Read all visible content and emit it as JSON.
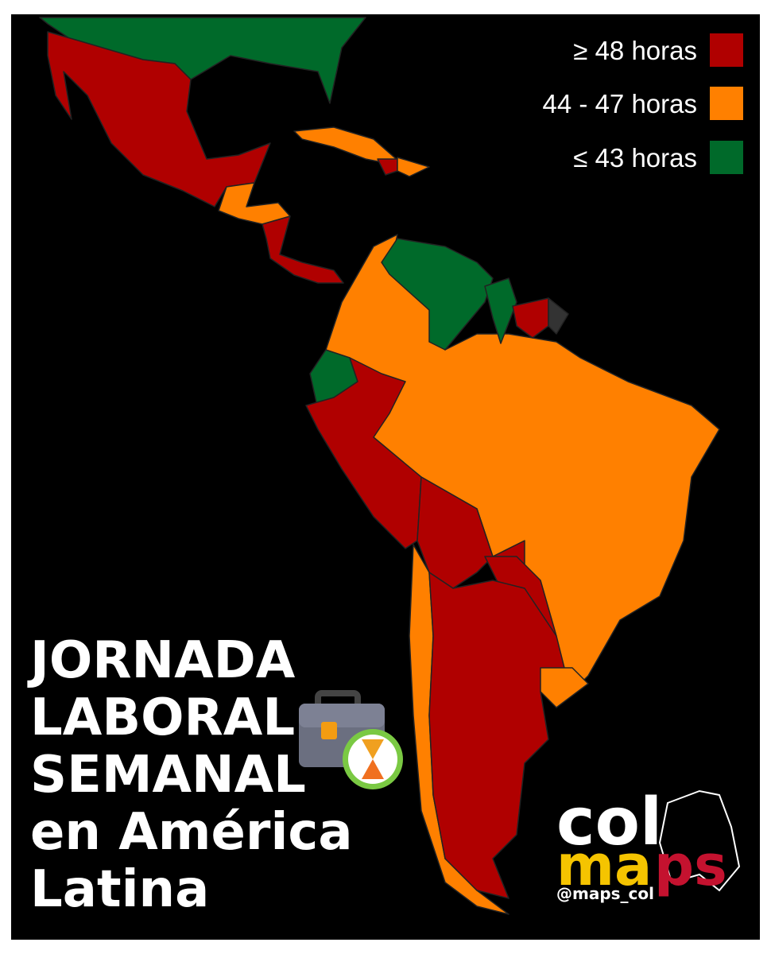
{
  "legend": {
    "items": [
      {
        "label": "≥ 48 horas",
        "color": "#b00000"
      },
      {
        "label": "44 - 47 horas",
        "color": "#ff8000"
      },
      {
        "label": "≤ 43 horas",
        "color": "#006a2a"
      }
    ]
  },
  "title": {
    "lines": [
      "JORNADA",
      "LABORAL",
      "SEMANAL",
      "en América",
      "Latina"
    ]
  },
  "logo": {
    "line1": "col",
    "line2a": "ma",
    "line2b": "ps",
    "handle": "@maps_col"
  }
}
